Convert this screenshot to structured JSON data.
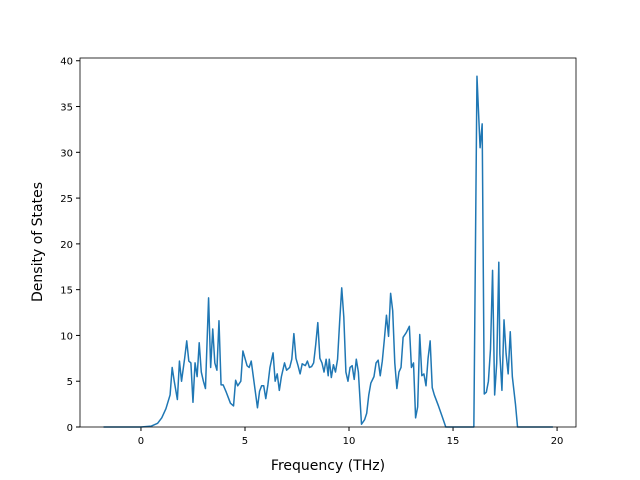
{
  "chart_data": {
    "type": "line",
    "xlabel": "Frequency (THz)",
    "ylabel": "Density of States",
    "x": [
      -1.8,
      0,
      0.5,
      0.8,
      1.0,
      1.2,
      1.4,
      1.5,
      1.6,
      1.75,
      1.85,
      1.95,
      2.1,
      2.2,
      2.3,
      2.4,
      2.5,
      2.6,
      2.7,
      2.8,
      2.9,
      3.0,
      3.1,
      3.25,
      3.35,
      3.45,
      3.55,
      3.65,
      3.75,
      3.85,
      3.95,
      4.1,
      4.2,
      4.3,
      4.45,
      4.55,
      4.65,
      4.8,
      4.9,
      5.0,
      5.1,
      5.2,
      5.3,
      5.4,
      5.5,
      5.6,
      5.7,
      5.8,
      5.9,
      6.0,
      6.1,
      6.2,
      6.35,
      6.45,
      6.55,
      6.65,
      6.75,
      6.9,
      7.0,
      7.15,
      7.25,
      7.35,
      7.45,
      7.55,
      7.65,
      7.75,
      7.9,
      8.0,
      8.1,
      8.2,
      8.3,
      8.4,
      8.5,
      8.6,
      8.7,
      8.8,
      8.9,
      9.0,
      9.05,
      9.15,
      9.25,
      9.35,
      9.45,
      9.55,
      9.65,
      9.75,
      9.85,
      9.95,
      10.05,
      10.15,
      10.25,
      10.35,
      10.45,
      10.6,
      10.75,
      10.85,
      10.95,
      11.05,
      11.2,
      11.3,
      11.4,
      11.5,
      11.6,
      11.7,
      11.8,
      11.9,
      12.0,
      12.1,
      12.2,
      12.3,
      12.4,
      12.5,
      12.6,
      12.75,
      12.9,
      13.0,
      13.1,
      13.2,
      13.3,
      13.4,
      13.5,
      13.6,
      13.7,
      13.8,
      13.9,
      14.0,
      14.1,
      14.3,
      14.5,
      14.65,
      15.0,
      16.0,
      16.15,
      16.3,
      16.4,
      16.5,
      16.6,
      16.7,
      16.8,
      16.9,
      17.0,
      17.1,
      17.2,
      17.25,
      17.35,
      17.45,
      17.55,
      17.65,
      17.75,
      17.85,
      18.0,
      18.1,
      19.8
    ],
    "values": [
      0,
      0,
      0.1,
      0.4,
      1,
      2,
      3.5,
      6.5,
      5,
      3,
      7.2,
      5,
      7.5,
      9.4,
      7.2,
      7,
      2.7,
      7,
      5.5,
      9.2,
      6,
      5,
      4.2,
      14.1,
      6.5,
      10.7,
      7,
      6.2,
      11.6,
      4.6,
      4.6,
      3.8,
      3.2,
      2.6,
      2.3,
      5.1,
      4.5,
      5,
      8.3,
      7.5,
      6.7,
      6.5,
      7.2,
      5.5,
      3.8,
      2.1,
      3.9,
      4.5,
      4.5,
      3.1,
      4.6,
      6.5,
      8.1,
      5,
      5.8,
      4,
      5.5,
      7,
      6.2,
      6.5,
      7.4,
      10.2,
      7.5,
      6.7,
      5.8,
      6.9,
      6.7,
      7.2,
      6.5,
      6.6,
      7,
      9,
      11.4,
      7.5,
      7,
      6,
      7.4,
      5.6,
      7.4,
      5.4,
      6.8,
      6,
      7.4,
      11.5,
      15.2,
      12,
      6,
      5,
      6.5,
      6.7,
      5.2,
      7.4,
      6,
      0.3,
      0.8,
      1.5,
      3.5,
      4.8,
      5.5,
      7,
      7.3,
      5.6,
      7.2,
      9.6,
      12.2,
      9.9,
      14.6,
      12.7,
      7,
      4.2,
      6,
      6.5,
      9.8,
      10.3,
      11,
      6.5,
      7,
      1,
      2.2,
      10.1,
      5.6,
      5.8,
      4.5,
      7.5,
      9.4,
      4.3,
      3.5,
      2.3,
      1,
      0,
      0,
      0,
      38.3,
      30.5,
      33.1,
      3.6,
      3.8,
      5,
      8.5,
      17.1,
      3.5,
      7,
      18,
      8,
      4,
      11.7,
      8,
      5.8,
      10.4,
      5.5,
      2.5,
      0,
      0
    ],
    "color": "#1f77b4",
    "xlim": [
      -2.93,
      20.91
    ],
    "xticks": [
      0,
      5,
      10,
      15,
      20
    ],
    "ylim": [
      0,
      40.3
    ],
    "yticks": [
      0,
      5,
      10,
      15,
      20,
      25,
      30,
      35,
      40
    ]
  }
}
